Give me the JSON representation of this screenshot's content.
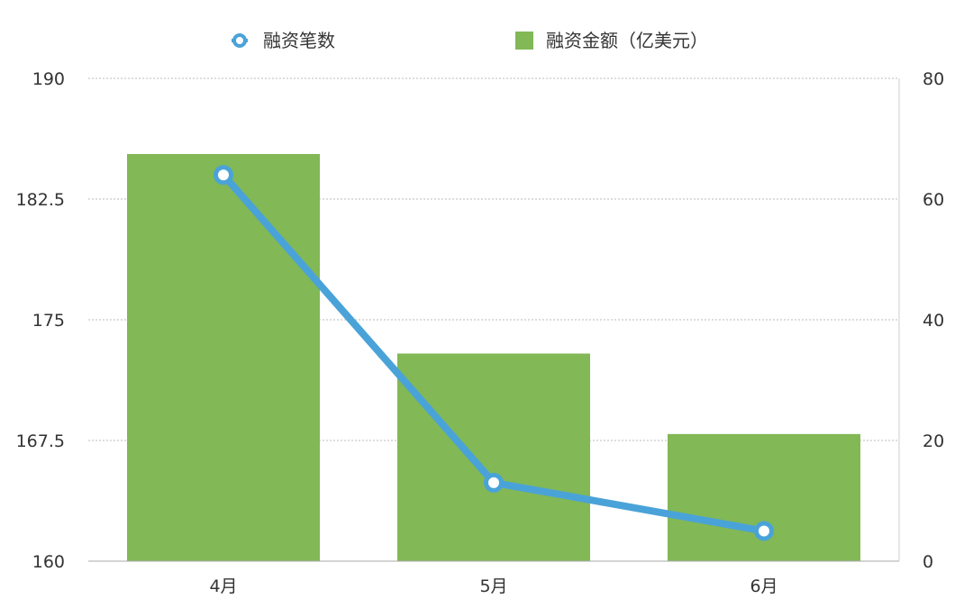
{
  "chart_data": {
    "type": "bar",
    "categories": [
      "4月",
      "5月",
      "6月"
    ],
    "series": [
      {
        "name": "融资金额（亿美元）",
        "type": "bar",
        "axis": "left",
        "color": "#82b855",
        "values": [
          185.3,
          172.9,
          167.9
        ]
      },
      {
        "name": "融资笔数",
        "type": "line",
        "axis": "right",
        "color": "#4aa3d8",
        "values": [
          64,
          13,
          5
        ]
      }
    ],
    "y_left": {
      "min": 160,
      "max": 190,
      "ticks": [
        "160",
        "167.5",
        "175",
        "182.5",
        "190"
      ],
      "tick_values": [
        160,
        167.5,
        175,
        182.5,
        190
      ]
    },
    "y_right": {
      "min": 0,
      "max": 80,
      "ticks": [
        "0",
        "20",
        "40",
        "60",
        "80"
      ],
      "tick_values": [
        0,
        20,
        40,
        60,
        80
      ]
    },
    "grid": true,
    "legend_position": "top-center"
  }
}
